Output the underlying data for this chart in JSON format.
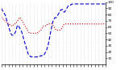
{
  "background_color": "#ffffff",
  "blue_color": "#0000cc",
  "red_color": "#cc0000",
  "blue_linewidth": 0.8,
  "red_linewidth": 0.8,
  "ylim": [
    0,
    100
  ],
  "num_points": 288,
  "blue_data": [
    90,
    89,
    88,
    87,
    86,
    85,
    84,
    83,
    82,
    81,
    80,
    79,
    77,
    75,
    73,
    71,
    69,
    67,
    65,
    63,
    61,
    59,
    57,
    55,
    53,
    51,
    50,
    49,
    48,
    47,
    47,
    47,
    47,
    47,
    47,
    48,
    49,
    50,
    51,
    52,
    54,
    56,
    58,
    60,
    62,
    63,
    63,
    62,
    61,
    60,
    59,
    58,
    57,
    56,
    55,
    54,
    52,
    50,
    48,
    46,
    44,
    42,
    40,
    38,
    36,
    34,
    32,
    30,
    28,
    26,
    24,
    22,
    20,
    18,
    17,
    16,
    15,
    14,
    14,
    13,
    13,
    13,
    12,
    12,
    12,
    12,
    12,
    12,
    12,
    12,
    12,
    12,
    12,
    12,
    12,
    12,
    12,
    12,
    12,
    12,
    12,
    12,
    12,
    13,
    13,
    13,
    13,
    13,
    14,
    14,
    14,
    14,
    14,
    14,
    14,
    14,
    15,
    15,
    16,
    17,
    18,
    19,
    20,
    21,
    22,
    24,
    26,
    28,
    30,
    32,
    35,
    38,
    41,
    44,
    47,
    50,
    53,
    56,
    59,
    62,
    65,
    67,
    69,
    71,
    72,
    73,
    74,
    75,
    75,
    75,
    75,
    75,
    76,
    77,
    78,
    79,
    80,
    81,
    82,
    83,
    84,
    85,
    86,
    87,
    88,
    88,
    88,
    88,
    88,
    87,
    86,
    85,
    84,
    84,
    84,
    85,
    86,
    87,
    88,
    89,
    90,
    91,
    92,
    93,
    94,
    95,
    95,
    95,
    95,
    95,
    95,
    96,
    96,
    96,
    97,
    97,
    97,
    97,
    97,
    97,
    97,
    97,
    97,
    97,
    97,
    97,
    97,
    97,
    97,
    97,
    97,
    97,
    97,
    97,
    97,
    97,
    97,
    97,
    97,
    97,
    97,
    97,
    97,
    97,
    97,
    97,
    97,
    97,
    97,
    97,
    97,
    97,
    97,
    97,
    97,
    97,
    97,
    97,
    97,
    97,
    97,
    97,
    97,
    97,
    97,
    97,
    97,
    97,
    97,
    97,
    97,
    97,
    97,
    97,
    97,
    97,
    97,
    97,
    97,
    97,
    97,
    97,
    97,
    97,
    97,
    97,
    97,
    97,
    97,
    97,
    97,
    97,
    97,
    97,
    97,
    97,
    97,
    97,
    97,
    97,
    97,
    97,
    97,
    97,
    97,
    97,
    97,
    97
  ],
  "red_data": [
    75,
    75,
    74,
    74,
    73,
    73,
    72,
    72,
    71,
    71,
    70,
    70,
    69,
    69,
    68,
    68,
    67,
    67,
    66,
    66,
    65,
    65,
    64,
    64,
    63,
    63,
    62,
    62,
    62,
    62,
    62,
    62,
    63,
    63,
    64,
    64,
    65,
    65,
    66,
    66,
    67,
    67,
    68,
    68,
    69,
    70,
    71,
    72,
    73,
    74,
    75,
    75,
    75,
    74,
    73,
    72,
    71,
    70,
    69,
    68,
    67,
    66,
    65,
    64,
    63,
    62,
    61,
    60,
    59,
    58,
    57,
    56,
    55,
    54,
    53,
    52,
    51,
    50,
    50,
    50,
    50,
    50,
    50,
    50,
    50,
    50,
    50,
    50,
    50,
    50,
    50,
    50,
    50,
    50,
    50,
    50,
    50,
    50,
    50,
    50,
    51,
    51,
    52,
    52,
    53,
    53,
    54,
    54,
    55,
    55,
    56,
    57,
    58,
    59,
    60,
    61,
    62,
    62,
    62,
    62,
    62,
    62,
    62,
    63,
    63,
    63,
    64,
    64,
    65,
    65,
    65,
    65,
    65,
    65,
    65,
    65,
    65,
    65,
    65,
    65,
    65,
    64,
    63,
    62,
    61,
    60,
    59,
    58,
    57,
    56,
    55,
    55,
    55,
    55,
    55,
    55,
    55,
    55,
    55,
    55,
    55,
    55,
    55,
    55,
    56,
    57,
    58,
    59,
    60,
    61,
    62,
    63,
    64,
    65,
    65,
    65,
    65,
    65,
    65,
    65,
    65,
    65,
    65,
    65,
    65,
    65,
    65,
    65,
    65,
    65,
    65,
    65,
    65,
    65,
    65,
    65,
    65,
    65,
    65,
    65,
    65,
    65,
    65,
    65,
    65,
    65,
    65,
    65,
    65,
    65,
    65,
    65,
    65,
    65,
    65,
    65,
    65,
    65,
    65,
    65,
    65,
    65,
    65,
    65,
    65,
    65,
    65,
    65,
    65,
    65,
    65,
    65,
    65,
    65,
    65,
    65,
    65,
    65,
    65,
    65,
    65,
    65,
    65,
    65,
    65,
    65,
    65,
    65,
    65,
    65,
    65,
    65,
    65,
    65,
    65,
    65,
    65,
    65,
    65,
    65,
    65,
    65,
    65,
    65,
    65,
    65,
    65,
    65,
    65,
    65,
    65,
    65,
    65,
    65,
    65,
    65,
    65,
    65,
    65,
    65,
    65,
    65,
    65,
    65,
    65,
    65,
    65,
    65
  ],
  "yticks": [
    10,
    20,
    30,
    40,
    50,
    60,
    70,
    80,
    90,
    100
  ],
  "ytick_labels": [
    "10",
    "20",
    "30",
    "40",
    "50",
    "60",
    "70",
    "80",
    "90",
    "100"
  ],
  "grid_color": "#cccccc",
  "tick_fontsize": 3.0,
  "num_xticks": 30
}
